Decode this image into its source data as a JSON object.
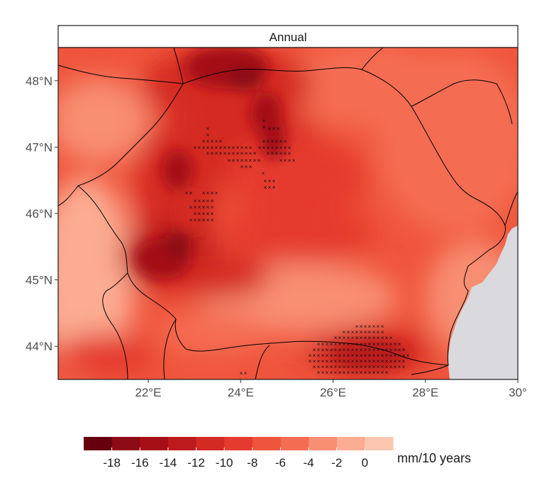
{
  "map": {
    "panel_title": "Annual",
    "lon_ticks": [
      {
        "value": 22,
        "label": "22°E"
      },
      {
        "value": 24,
        "label": "24°E"
      },
      {
        "value": 26,
        "label": "26°E"
      },
      {
        "value": 28,
        "label": "28°E"
      },
      {
        "value": 30,
        "label": "30°"
      }
    ],
    "lat_ticks": [
      {
        "value": 48,
        "label": "48°N"
      },
      {
        "value": 47,
        "label": "47°N"
      },
      {
        "value": 46,
        "label": "46°N"
      },
      {
        "value": 45,
        "label": "45°N"
      },
      {
        "value": 44,
        "label": "44°N"
      }
    ],
    "lon_range": [
      20.05,
      30.0
    ],
    "lat_range": [
      43.5,
      48.5
    ],
    "sea_color": "#d9d9de",
    "border_color": "#000000",
    "significance_marker": "×"
  },
  "legend": {
    "unit": "mm/10 years",
    "labels": [
      "-18",
      "-16",
      "-14",
      "-12",
      "-10",
      "-8",
      "-6",
      "-4",
      "-2",
      "0"
    ],
    "colors": [
      "#67000d",
      "#8d0a17",
      "#a50f15",
      "#bd1a1d",
      "#d42a24",
      "#e53b2f",
      "#ef553c",
      "#f46d52",
      "#f88e72",
      "#fbac92",
      "#fdc6b0"
    ]
  }
}
